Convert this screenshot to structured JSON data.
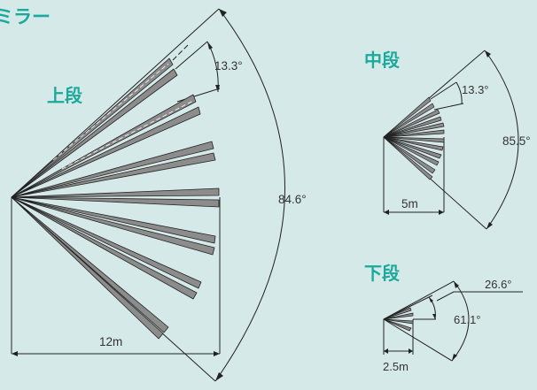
{
  "title": "ミラー",
  "colors": {
    "background": "#d6e9e9",
    "accent": "#1aa99a",
    "line": "#222222",
    "zone_fill": "#8c8c8c"
  },
  "sections": {
    "upper": {
      "label": "上段",
      "distance": "12m",
      "total_angle": "84.6°",
      "zone_angle": "13.3°"
    },
    "middle": {
      "label": "中段",
      "distance": "5m",
      "total_angle": "85.5°",
      "zone_angle": "13.3°"
    },
    "lower": {
      "label": "下段",
      "distance": "2.5m",
      "total_angle": "61.1°",
      "zone_angle": "26.6°"
    }
  }
}
